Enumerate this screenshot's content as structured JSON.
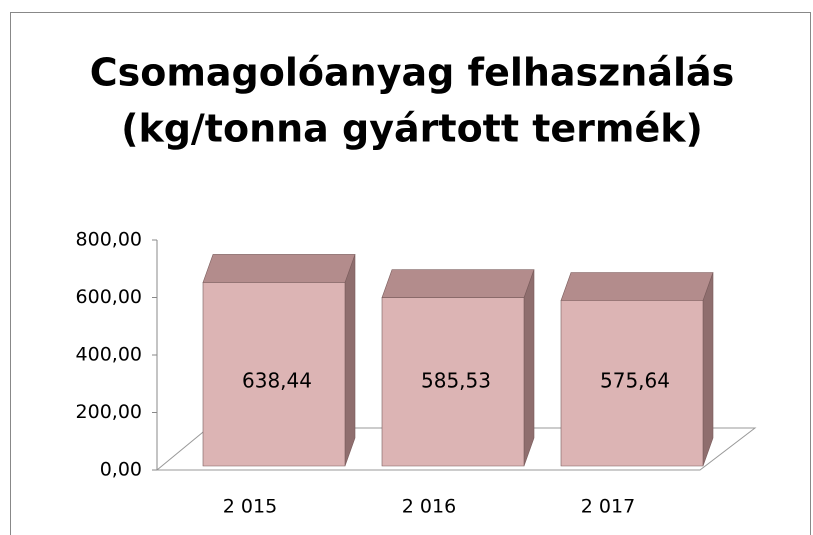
{
  "chart_data": {
    "type": "bar3d",
    "title": [
      "Csomagolóanyag felhasználás",
      "(kg/tonna gyártott termék)"
    ],
    "categories": [
      "2 015",
      "2 016",
      "2 017"
    ],
    "values": [
      638.44,
      585.53,
      575.64
    ],
    "value_labels": [
      "638,44",
      "585,53",
      "575,64"
    ],
    "color": "#dcb4b4",
    "ylim": [
      0,
      800
    ],
    "yticks": [
      {
        "value": 0,
        "label": "0,00"
      },
      {
        "value": 200,
        "label": "200,00"
      },
      {
        "value": 400,
        "label": "400,00"
      },
      {
        "value": 600,
        "label": "600,00"
      },
      {
        "value": 800,
        "label": "800,00"
      }
    ],
    "grid": false
  }
}
